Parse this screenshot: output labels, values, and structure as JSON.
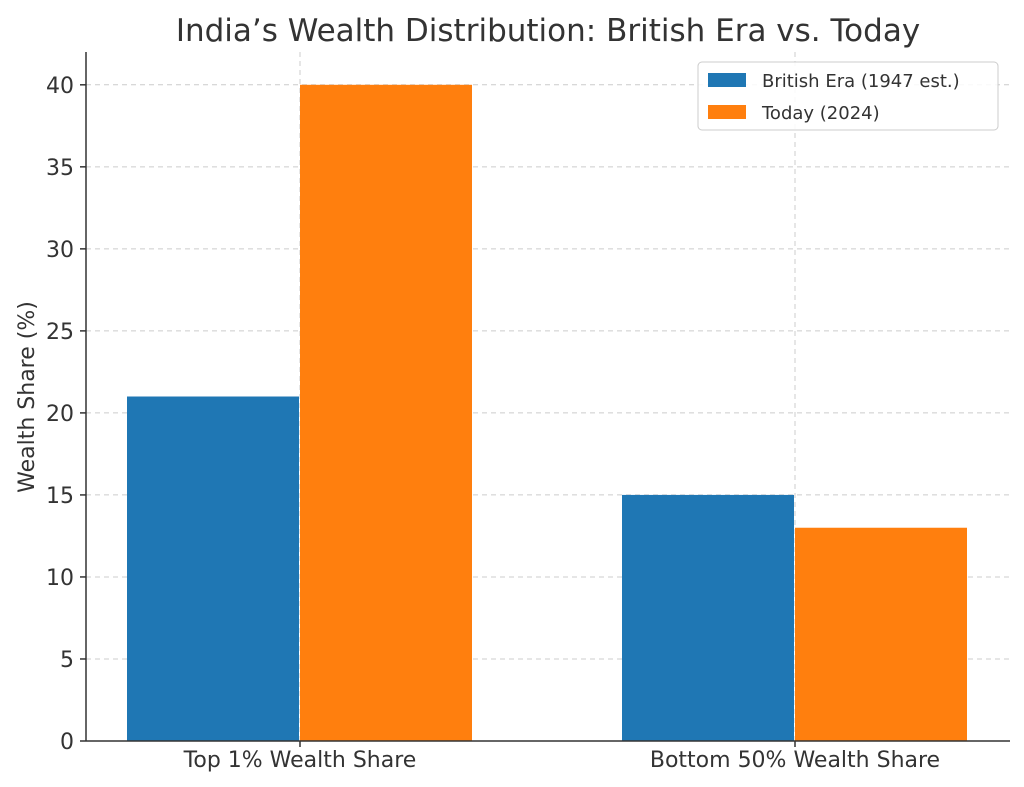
{
  "chart_data": {
    "type": "bar",
    "title": "India’s Wealth Distribution: British Era vs. Today",
    "xlabel": "",
    "ylabel": "Wealth Share (%)",
    "ylim": [
      0,
      42
    ],
    "yticks": [
      0,
      5,
      10,
      15,
      20,
      25,
      30,
      35,
      40
    ],
    "grid": true,
    "legend_position": "top-right",
    "categories": [
      "Top 1% Wealth Share",
      "Bottom 50% Wealth Share"
    ],
    "series": [
      {
        "name": "British Era (1947 est.)",
        "color": "#1f77b4",
        "values": [
          21,
          15
        ]
      },
      {
        "name": "Today (2024)",
        "color": "#ff7f0e",
        "values": [
          40,
          13
        ]
      }
    ]
  }
}
